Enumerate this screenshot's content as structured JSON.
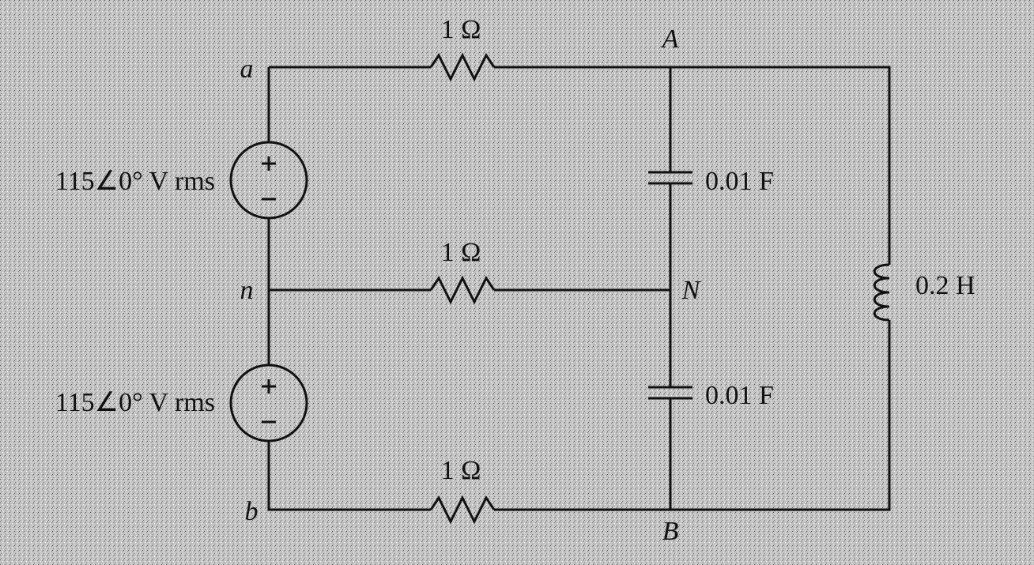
{
  "nodes": {
    "a": "a",
    "n": "n",
    "b": "b",
    "A": "A",
    "N": "N",
    "B": "B"
  },
  "sources": [
    {
      "label": "115∠0° V rms"
    },
    {
      "label": "115∠0° V rms"
    }
  ],
  "resistors": [
    {
      "label": "1 Ω"
    },
    {
      "label": "1 Ω"
    },
    {
      "label": "1 Ω"
    }
  ],
  "capacitors": [
    {
      "label": "0.01 F"
    },
    {
      "label": "0.01 F"
    }
  ],
  "inductor": {
    "label": "0.2 H"
  }
}
